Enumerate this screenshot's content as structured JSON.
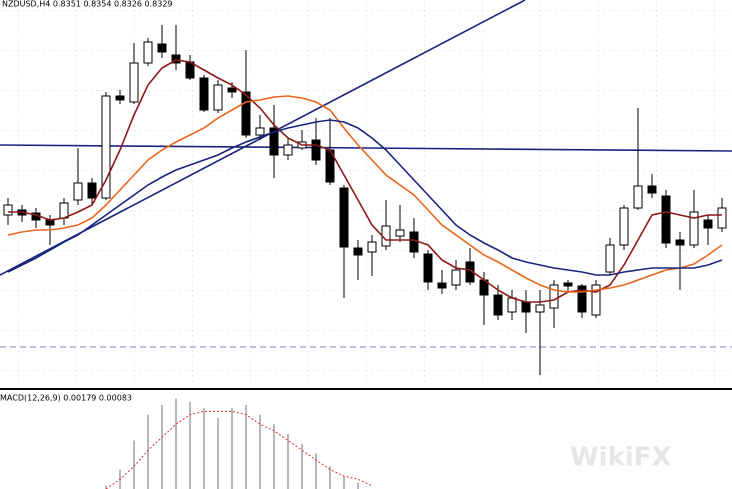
{
  "chart_data": [
    {
      "type": "candlestick",
      "title": "NZDUSD,H4  0.8351 0.8354 0.8326 0.8329",
      "ylim": [
        0.8149,
        0.8534
      ],
      "up_color": "#ffffff",
      "down_color": "#000000",
      "wick_color": "#000000",
      "open": [
        0.8319,
        0.8324,
        0.8321,
        0.8314,
        0.8316,
        0.8334,
        0.8351,
        0.8336,
        0.8438,
        0.8432,
        0.8471,
        0.849,
        0.8479,
        0.8472,
        0.8456,
        0.8424,
        0.8446,
        0.8442,
        0.8399,
        0.8406,
        0.8379,
        0.8386,
        0.8394,
        0.8384,
        0.8346,
        0.8286,
        0.8282,
        0.8288,
        0.8298,
        0.8302,
        0.828,
        0.8251,
        0.8249,
        0.8272,
        0.8254,
        0.8239,
        0.8222,
        0.8232,
        0.8222,
        0.8226,
        0.8251,
        0.8248,
        0.8219,
        0.8262,
        0.8289,
        0.8326,
        0.8348,
        0.8338,
        0.8294,
        0.8289,
        0.8314,
        0.8306
      ],
      "high": [
        0.8336,
        0.8329,
        0.8326,
        0.8319,
        0.8336,
        0.8386,
        0.8356,
        0.8442,
        0.8444,
        0.8491,
        0.8496,
        0.8509,
        0.8509,
        0.8479,
        0.8459,
        0.8454,
        0.8452,
        0.8484,
        0.8419,
        0.8429,
        0.8396,
        0.8404,
        0.8416,
        0.8416,
        0.8349,
        0.8294,
        0.8299,
        0.8334,
        0.8329,
        0.8316,
        0.8284,
        0.8264,
        0.8274,
        0.8286,
        0.8262,
        0.8249,
        0.8244,
        0.8244,
        0.8244,
        0.8254,
        0.8254,
        0.825,
        0.8254,
        0.8296,
        0.8329,
        0.8426,
        0.836,
        0.8344,
        0.8302,
        0.8344,
        0.8319,
        0.8336
      ],
      "low": [
        0.8309,
        0.8312,
        0.8306,
        0.8289,
        0.8309,
        0.8329,
        0.8329,
        0.8334,
        0.843,
        0.843,
        0.8468,
        0.8476,
        0.8464,
        0.8454,
        0.8422,
        0.8421,
        0.8436,
        0.8396,
        0.8394,
        0.8356,
        0.8374,
        0.8384,
        0.8369,
        0.8349,
        0.8236,
        0.8254,
        0.8258,
        0.8284,
        0.8292,
        0.8276,
        0.8244,
        0.824,
        0.8244,
        0.8249,
        0.8209,
        0.8214,
        0.8214,
        0.8201,
        0.8159,
        0.8206,
        0.8242,
        0.8216,
        0.8216,
        0.8259,
        0.8284,
        0.8324,
        0.8336,
        0.8286,
        0.8244,
        0.8286,
        0.8289,
        0.8302
      ],
      "close": [
        0.8329,
        0.8319,
        0.8314,
        0.8309,
        0.8331,
        0.8351,
        0.8336,
        0.8438,
        0.8434,
        0.8471,
        0.8492,
        0.8482,
        0.8471,
        0.8456,
        0.8424,
        0.8449,
        0.8442,
        0.8399,
        0.8406,
        0.8379,
        0.8389,
        0.8392,
        0.8374,
        0.8352,
        0.8287,
        0.8279,
        0.8292,
        0.8308,
        0.8304,
        0.8282,
        0.8252,
        0.8246,
        0.8264,
        0.8252,
        0.8239,
        0.8219,
        0.8236,
        0.8222,
        0.8229,
        0.8249,
        0.8248,
        0.8222,
        0.8249,
        0.8289,
        0.8326,
        0.8348,
        0.8341,
        0.8291,
        0.8289,
        0.8322,
        0.8306,
        0.8326
      ],
      "series": [
        {
          "color": "#8b1a1a",
          "values": [
            0.8322,
            0.8322,
            0.8319,
            0.8314,
            0.8316,
            0.8322,
            0.8329,
            0.8354,
            0.8384,
            0.8419,
            0.8449,
            0.8466,
            0.8474,
            0.8472,
            0.8464,
            0.8456,
            0.8449,
            0.8439,
            0.8426,
            0.8409,
            0.8396,
            0.8389,
            0.8389,
            0.8384,
            0.8359,
            0.8334,
            0.8309,
            0.8294,
            0.8294,
            0.8294,
            0.8289,
            0.8274,
            0.8266,
            0.8264,
            0.8254,
            0.8244,
            0.8236,
            0.8232,
            0.8232,
            0.8234,
            0.8242,
            0.8244,
            0.8242,
            0.8249,
            0.8269,
            0.8294,
            0.8319,
            0.8322,
            0.8319,
            0.8316,
            0.8319,
            0.8319
          ]
        },
        {
          "color": "#e8661e",
          "values": [
            0.8299,
            0.8302,
            0.8304,
            0.8304,
            0.8306,
            0.8309,
            0.8316,
            0.8329,
            0.8344,
            0.8359,
            0.8374,
            0.8384,
            0.8392,
            0.8399,
            0.8406,
            0.8416,
            0.8424,
            0.8432,
            0.8434,
            0.8437,
            0.8438,
            0.8436,
            0.8432,
            0.8424,
            0.8406,
            0.8389,
            0.8374,
            0.8359,
            0.8349,
            0.8339,
            0.8324,
            0.8309,
            0.8299,
            0.8289,
            0.8279,
            0.8272,
            0.8264,
            0.8256,
            0.8249,
            0.8244,
            0.8242,
            0.8242,
            0.8244,
            0.8246,
            0.8249,
            0.8254,
            0.8259,
            0.8264,
            0.8266,
            0.827,
            0.8279,
            0.8289
          ]
        },
        {
          "color": "#1a237e",
          "values": [
            0.8262,
            0.8269,
            0.8276,
            0.8284,
            0.8292,
            0.8299,
            0.8309,
            0.8319,
            0.8329,
            0.8339,
            0.8349,
            0.8357,
            0.8364,
            0.8369,
            0.8374,
            0.8379,
            0.8386,
            0.8392,
            0.8397,
            0.8402,
            0.8406,
            0.8409,
            0.8412,
            0.8414,
            0.8412,
            0.8406,
            0.8396,
            0.8384,
            0.8369,
            0.8354,
            0.8339,
            0.8324,
            0.8309,
            0.8299,
            0.8291,
            0.8284,
            0.8276,
            0.8272,
            0.8269,
            0.8266,
            0.8264,
            0.8262,
            0.8259,
            0.8259,
            0.8262,
            0.8264,
            0.8266,
            0.8266,
            0.8266,
            0.8266,
            0.8269,
            0.8274
          ]
        }
      ],
      "lines": [
        {
          "color": "#1a237e",
          "points": [
            [
              -0.57,
              0.8259
            ],
            [
              36.93,
              0.8534
            ]
          ]
        },
        {
          "color": "#1a237e",
          "points": [
            [
              -0.57,
              0.8389
            ],
            [
              51.71,
              0.8383
            ]
          ]
        },
        {
          "color": "#7a86b8",
          "dash": true,
          "points": [
            [
              -0.57,
              0.8187
            ],
            [
              51.71,
              0.8187
            ]
          ]
        }
      ],
      "watermark": "WikiFX"
    },
    {
      "type": "macd",
      "title": "MACD(12,26,9) 0.00179 0.00083",
      "ylim": [
        0,
        0.003
      ],
      "histogram": {
        "color": "#b8b8b8",
        "values": [
          null,
          null,
          null,
          null,
          null,
          null,
          null,
          0.0001,
          0.0006,
          0.0015,
          0.0023,
          0.0026,
          0.0028,
          0.0027,
          0.0025,
          0.0022,
          0.0025,
          0.0026,
          0.0023,
          0.002,
          0.0017,
          0.0014,
          0.0011,
          0.0007,
          0.0004,
          0.0002,
          null,
          null,
          null,
          null,
          null,
          null,
          null,
          null,
          null,
          null,
          null,
          null,
          null,
          null,
          null,
          null,
          null,
          null,
          null,
          null,
          null,
          null,
          null,
          null,
          null,
          null
        ]
      },
      "signal": {
        "color": "#e03030",
        "values": [
          null,
          null,
          null,
          null,
          null,
          null,
          null,
          0,
          0.0003,
          0.0007,
          0.0012,
          0.0016,
          0.002,
          0.0023,
          0.0024,
          0.0024,
          0.0024,
          0.0023,
          0.002,
          0.0018,
          0.0015,
          0.0012,
          0.0009,
          0.0006,
          0.0004,
          0.0003,
          0.0001,
          null,
          null,
          null,
          null,
          null,
          null,
          null,
          null,
          null,
          null,
          null,
          null,
          null,
          null,
          null,
          null,
          null,
          null,
          null,
          null,
          null,
          null,
          null,
          null,
          null
        ]
      }
    }
  ]
}
